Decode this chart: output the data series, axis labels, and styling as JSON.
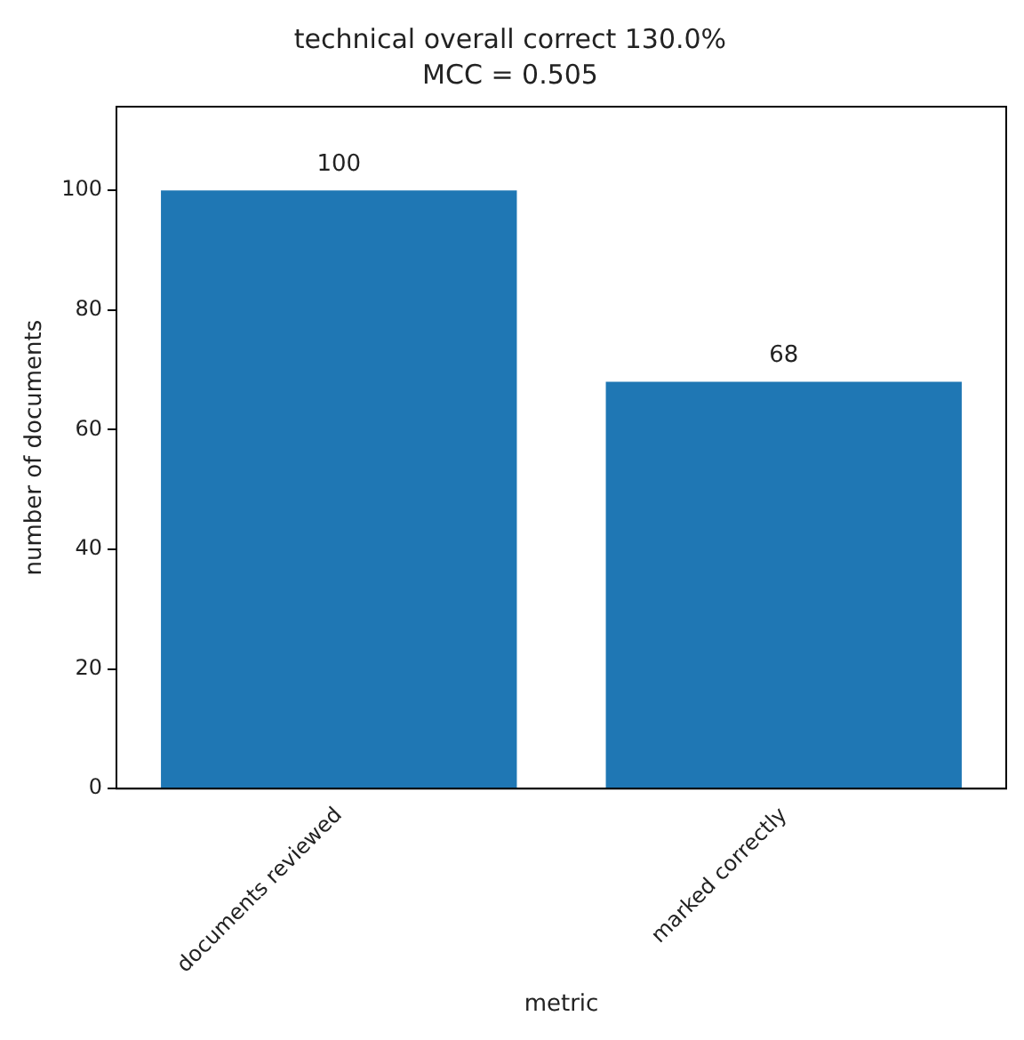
{
  "chart_data": {
    "type": "bar",
    "title": "technical overall correct 130.0%",
    "subtitle": "MCC = 0.505",
    "xlabel": "metric",
    "ylabel": "number of documents",
    "categories": [
      "documents reviewed",
      "marked correctly"
    ],
    "values": [
      100,
      68
    ],
    "color": "#1f77b4",
    "ylim": [
      0,
      114
    ],
    "yticks": [
      0,
      20,
      40,
      60,
      80,
      100
    ],
    "grid": false,
    "legend": false,
    "data_labels": true
  }
}
